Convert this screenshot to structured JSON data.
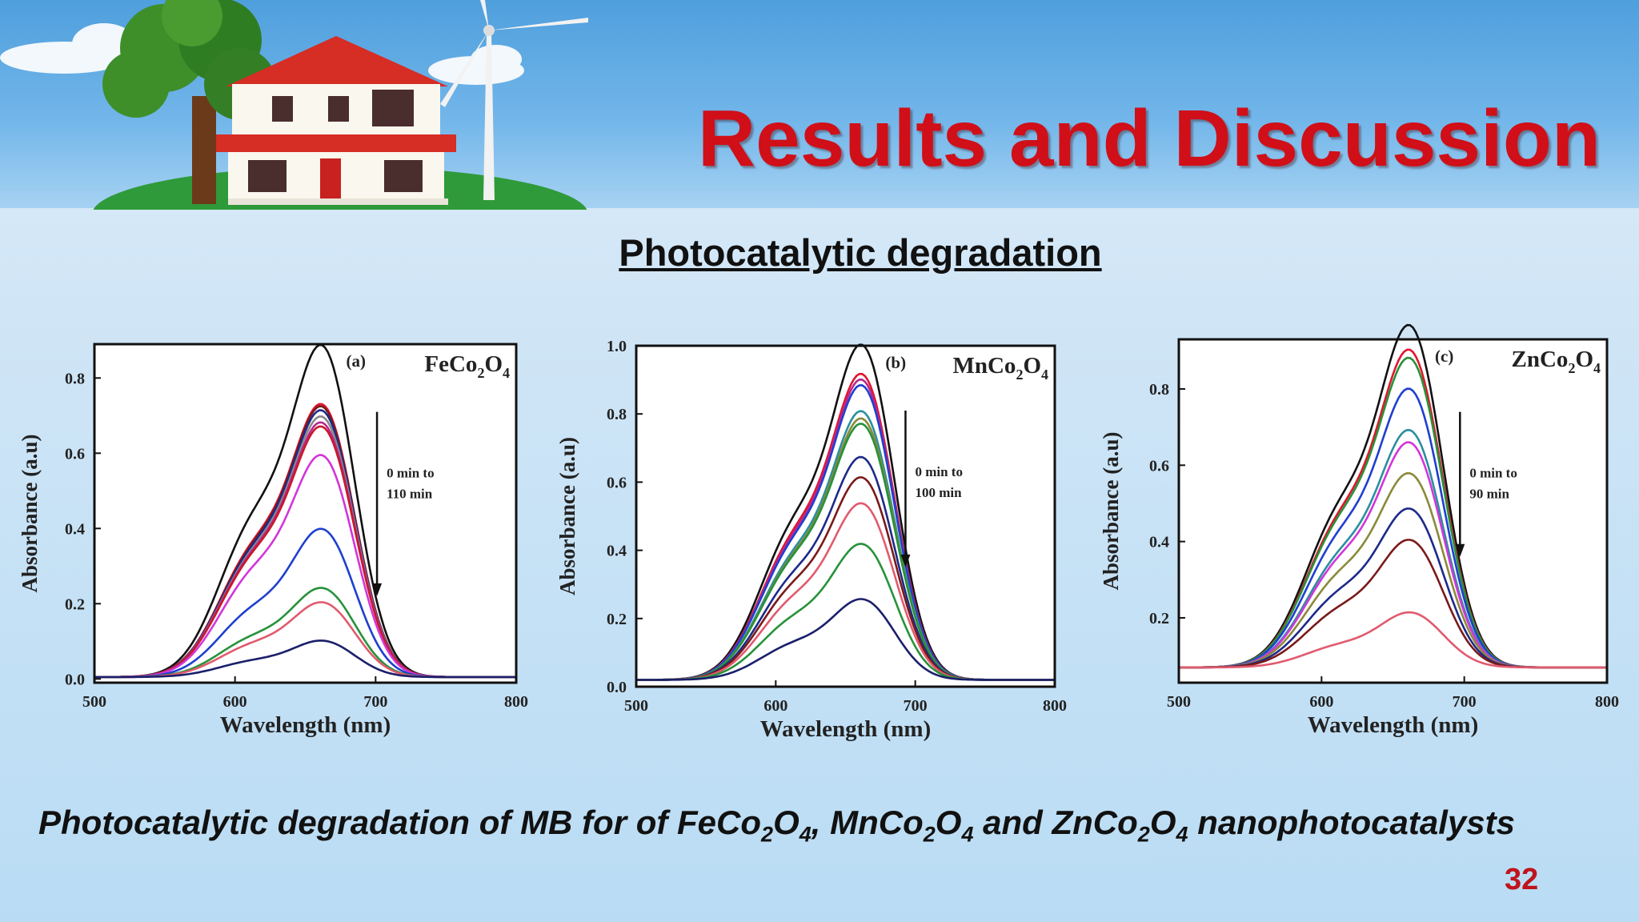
{
  "slide": {
    "title": "Results and Discussion",
    "subtitle": "Photocatalytic degradation",
    "caption": {
      "prefix": "Photocatalytic degradation of MB for of ",
      "m1": "FeCo",
      "m2": "MnCo",
      "m3": "ZnCo",
      "s2": "2",
      "s4": "4",
      "sep1": ", ",
      "sep2": " and ",
      "suffix": " nanophotocatalysts"
    },
    "page_number": "32",
    "colors": {
      "title": "#d00f18",
      "page_number": "#c0141c"
    }
  },
  "chart_data": [
    {
      "type": "line",
      "panel": "(a)",
      "material": {
        "base": "FeCo",
        "s1": "2",
        "mid": "O",
        "s2": "4"
      },
      "xlabel": "Wavelength (nm)",
      "ylabel": "Absorbance (a.u)",
      "xlim": [
        500,
        800
      ],
      "ylim": [
        -0.01,
        0.89
      ],
      "xticks": [
        500,
        600,
        700,
        800
      ],
      "yticks": [
        0.0,
        0.2,
        0.4,
        0.6,
        0.8
      ],
      "ytick_labels": [
        "0.0",
        "0.2",
        "0.4",
        "0.6",
        "0.8"
      ],
      "annotation": [
        "0 min to",
        "110 min"
      ],
      "arrow": {
        "x": 701,
        "y_from": 0.71,
        "y_to": 0.22
      },
      "baseline": 0.005,
      "series": [
        {
          "color": "#111111",
          "peak": 0.82,
          "shoulder": 0.455
        },
        {
          "color": "#e0162e",
          "peak": 0.675,
          "shoulder": 0.375
        },
        {
          "color": "#7a1a1a",
          "peak": 0.67,
          "shoulder": 0.37
        },
        {
          "color": "#1d2a8a",
          "peak": 0.66,
          "shoulder": 0.365
        },
        {
          "color": "#8a8a8a",
          "peak": 0.645,
          "shoulder": 0.356
        },
        {
          "color": "#b9278f",
          "peak": 0.63,
          "shoulder": 0.35
        },
        {
          "color": "#c9182b",
          "peak": 0.62,
          "shoulder": 0.345
        },
        {
          "color": "#d236d9",
          "peak": 0.55,
          "shoulder": 0.305
        },
        {
          "color": "#1f3fcf",
          "peak": 0.37,
          "shoulder": 0.2
        },
        {
          "color": "#27923a",
          "peak": 0.225,
          "shoulder": 0.12
        },
        {
          "color": "#e15a6e",
          "peak": 0.19,
          "shoulder": 0.1
        },
        {
          "color": "#1a1f6b",
          "peak": 0.095,
          "shoulder": 0.052
        }
      ]
    },
    {
      "type": "line",
      "panel": "(b)",
      "material": {
        "base": "MnCo",
        "s1": "2",
        "mid": "O",
        "s2": "4"
      },
      "xlabel": "Wavelength (nm)",
      "ylabel": "Absorbance (a.u)",
      "xlim": [
        500,
        800
      ],
      "ylim": [
        0.0,
        1.0
      ],
      "xticks": [
        500,
        600,
        700,
        800
      ],
      "yticks": [
        0.0,
        0.2,
        0.4,
        0.6,
        0.8,
        1.0
      ],
      "ytick_labels": [
        "0.0",
        "0.2",
        "0.4",
        "0.6",
        "0.8",
        "1.0"
      ],
      "annotation": [
        "0 min to",
        "100 min"
      ],
      "arrow": {
        "x": 693,
        "y_from": 0.81,
        "y_to": 0.35
      },
      "baseline": 0.02,
      "series": [
        {
          "color": "#111111",
          "peak": 0.93,
          "shoulder": 0.51
        },
        {
          "color": "#e0162e",
          "peak": 0.85,
          "shoulder": 0.47
        },
        {
          "color": "#b9278f",
          "peak": 0.835,
          "shoulder": 0.46
        },
        {
          "color": "#1f3fcf",
          "peak": 0.82,
          "shoulder": 0.45
        },
        {
          "color": "#2a8fa0",
          "peak": 0.75,
          "shoulder": 0.41
        },
        {
          "color": "#8a8a3a",
          "peak": 0.73,
          "shoulder": 0.4
        },
        {
          "color": "#27923a",
          "peak": 0.715,
          "shoulder": 0.395
        },
        {
          "color": "#1d2a8a",
          "peak": 0.625,
          "shoulder": 0.345
        },
        {
          "color": "#7a1a1a",
          "peak": 0.57,
          "shoulder": 0.315
        },
        {
          "color": "#e15a6e",
          "peak": 0.5,
          "shoulder": 0.275
        },
        {
          "color": "#27923a",
          "peak": 0.39,
          "shoulder": 0.215
        },
        {
          "color": "#1a1f6b",
          "peak": 0.24,
          "shoulder": 0.135
        }
      ]
    },
    {
      "type": "line",
      "panel": "(c)",
      "material": {
        "base": "ZnCo",
        "s1": "2",
        "mid": "O",
        "s2": "4"
      },
      "xlabel": "Wavelength (nm)",
      "ylabel": "Absorbance (a.u)",
      "xlim": [
        500,
        800
      ],
      "ylim": [
        0.03,
        0.93
      ],
      "xticks": [
        500,
        600,
        700,
        800
      ],
      "yticks": [
        0.2,
        0.4,
        0.6,
        0.8
      ],
      "ytick_labels": [
        "0.2",
        "0.4",
        "0.6",
        "0.8"
      ],
      "annotation": [
        "0 min to",
        "90 min"
      ],
      "arrow": {
        "x": 697,
        "y_from": 0.74,
        "y_to": 0.36
      },
      "baseline": 0.07,
      "series": [
        {
          "color": "#111111",
          "peak": 0.9,
          "shoulder": 0.52
        },
        {
          "color": "#e0162e",
          "peak": 0.84,
          "shoulder": 0.49
        },
        {
          "color": "#27923a",
          "peak": 0.82,
          "shoulder": 0.48
        },
        {
          "color": "#1f3fcf",
          "peak": 0.745,
          "shoulder": 0.44
        },
        {
          "color": "#2a8fa0",
          "peak": 0.645,
          "shoulder": 0.385
        },
        {
          "color": "#d236d9",
          "peak": 0.615,
          "shoulder": 0.37
        },
        {
          "color": "#8a8a3a",
          "peak": 0.54,
          "shoulder": 0.33
        },
        {
          "color": "#1d2a8a",
          "peak": 0.455,
          "shoulder": 0.28
        },
        {
          "color": "#7a1a1a",
          "peak": 0.38,
          "shoulder": 0.235
        },
        {
          "color": "#e15a6e",
          "peak": 0.205,
          "shoulder": 0.135
        }
      ]
    }
  ]
}
